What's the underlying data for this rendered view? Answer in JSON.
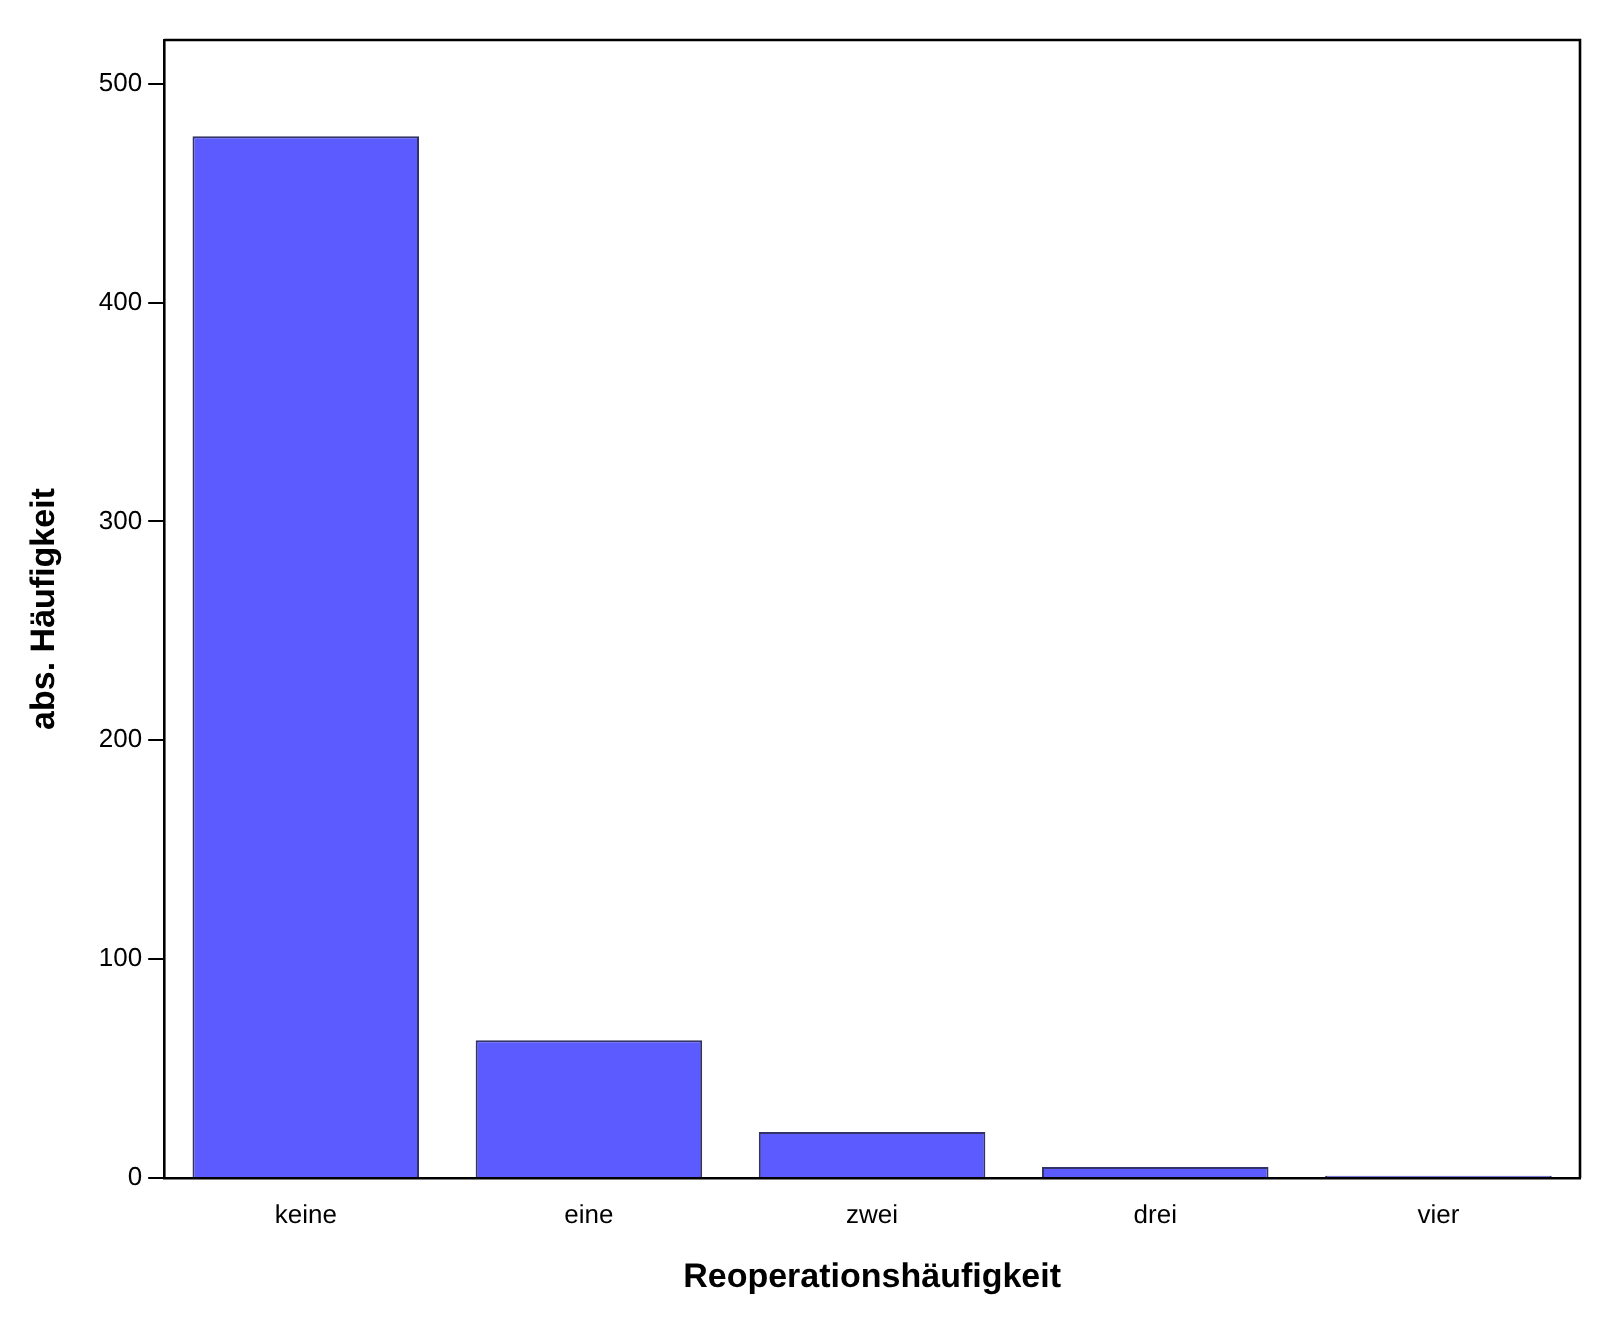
{
  "chart_data": {
    "type": "bar",
    "xlabel": "Reoperationshäufigkeit",
    "ylabel": "abs. Häufigkeit",
    "categories": [
      "keine",
      "eine",
      "zwei",
      "drei",
      "vier"
    ],
    "values": [
      476,
      63,
      21,
      5,
      1
    ],
    "color": "#5b5bff",
    "ylim": [
      0,
      520
    ],
    "yticks": [
      0,
      100,
      200,
      300,
      400,
      500
    ],
    "grid": false,
    "legend": false
  }
}
